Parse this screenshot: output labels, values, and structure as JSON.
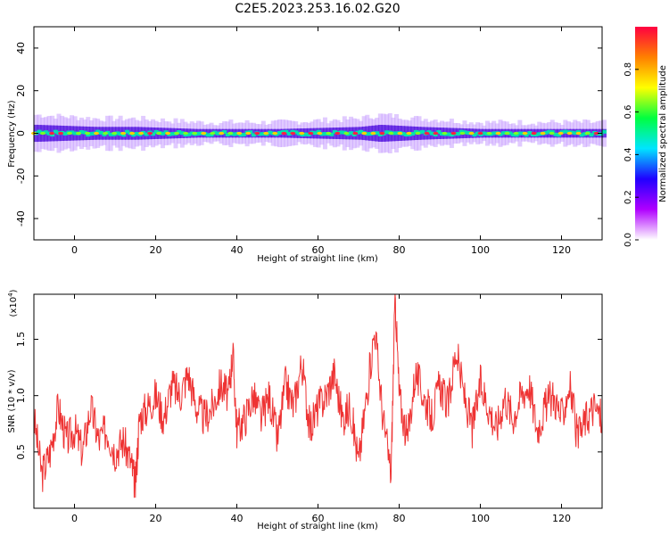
{
  "title": "C2E5.2023.253.16.02.G20",
  "chart_data": [
    {
      "type": "heatmap",
      "name": "spectrogram",
      "xlabel": "Height of straight line (km)",
      "ylabel": "Frequency (Hz)",
      "xlim": [
        -10,
        130
      ],
      "ylim": [
        -50,
        50
      ],
      "xticks": [
        0,
        20,
        40,
        60,
        80,
        100,
        120
      ],
      "yticks": [
        -40,
        -20,
        0,
        20,
        40
      ],
      "band_center_hz": 0,
      "band_halfwidth_hz": [
        4,
        3,
        3,
        2,
        2,
        3,
        4,
        3,
        2,
        2
      ],
      "band_halfwidth_x": [
        -10,
        5,
        15,
        30,
        50,
        70,
        75,
        85,
        100,
        130
      ],
      "colorbar": {
        "label": "Normalized spectral amplitude",
        "ticks": [
          "0.0",
          "0.2",
          "0.4",
          "0.6",
          "0.8"
        ],
        "range": [
          0,
          1
        ],
        "colors": [
          "#ffffff",
          "#b000ff",
          "#2000ff",
          "#00e5ff",
          "#00ff40",
          "#ffff00",
          "#ff8000",
          "#ff0040"
        ]
      }
    },
    {
      "type": "line",
      "name": "snr",
      "xlabel": "Height of straight line (km)",
      "ylabel": "SNR (10 * v/v)",
      "multiplier": "(x10^4)",
      "multiplier_base": "(x10",
      "multiplier_exp": "4",
      "multiplier_close": ")",
      "xlim": [
        -10,
        130
      ],
      "ylim": [
        0,
        1.9
      ],
      "xticks": [
        0,
        20,
        40,
        60,
        80,
        100,
        120
      ],
      "yticks": [
        "0.5",
        "1.0",
        "1.5"
      ],
      "ytick_values": [
        0.5,
        1.0,
        1.5
      ],
      "color": "#ee3333",
      "x": [
        -10,
        -8,
        -6,
        -4,
        -2,
        0,
        2,
        4,
        6,
        8,
        10,
        12,
        14,
        15,
        16,
        18,
        20,
        22,
        24,
        26,
        28,
        30,
        32,
        34,
        36,
        38,
        39,
        40,
        42,
        44,
        46,
        48,
        50,
        52,
        54,
        56,
        58,
        60,
        62,
        64,
        66,
        68,
        70,
        72,
        74,
        76,
        78,
        79,
        80,
        82,
        84,
        86,
        88,
        90,
        92,
        94,
        96,
        98,
        100,
        102,
        104,
        106,
        108,
        110,
        112,
        114,
        116,
        118,
        120,
        122,
        124,
        126,
        128,
        130
      ],
      "y": [
        0.8,
        0.3,
        0.5,
        0.9,
        0.6,
        0.7,
        0.5,
        0.9,
        0.6,
        0.7,
        0.5,
        0.6,
        0.4,
        0.2,
        0.8,
        0.9,
        1.0,
        0.8,
        1.1,
        1.0,
        1.2,
        0.9,
        0.8,
        0.9,
        1.1,
        1.0,
        1.4,
        0.7,
        0.8,
        1.0,
        0.8,
        1.0,
        0.6,
        1.1,
        0.9,
        1.3,
        0.7,
        0.9,
        1.0,
        1.2,
        0.8,
        0.9,
        0.4,
        1.0,
        1.6,
        0.8,
        0.3,
        1.9,
        1.0,
        0.6,
        1.2,
        1.0,
        0.8,
        1.1,
        0.9,
        1.4,
        1.0,
        0.7,
        1.1,
        0.9,
        0.7,
        1.0,
        0.8,
        1.0,
        1.1,
        0.7,
        0.9,
        1.0,
        0.8,
        1.1,
        0.6,
        0.8,
        0.9,
        0.8
      ]
    }
  ]
}
